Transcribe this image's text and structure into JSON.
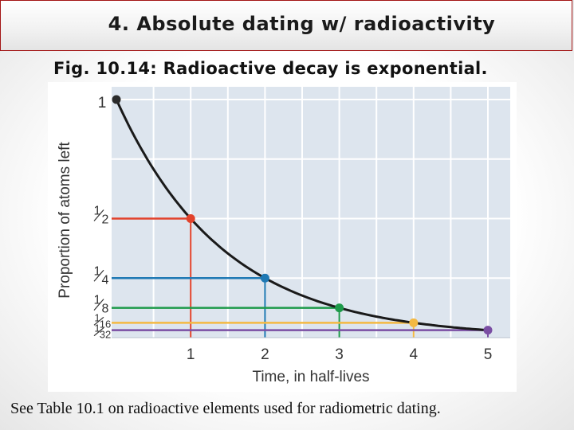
{
  "slide": {
    "title": "4. Absolute dating w/ radioactivity",
    "caption": "Fig. 10.14: Radioactive decay is exponential.",
    "footer": "See Table 10.1 on radioactive elements used for radiometric dating."
  },
  "chart_data": {
    "type": "line",
    "title": "",
    "xlabel": "Time, in half-lives",
    "ylabel": "Proportion of atoms left",
    "xlim": [
      0,
      5.3
    ],
    "ylim": [
      0,
      1.05
    ],
    "grid": true,
    "x_ticks": [
      {
        "value": 1,
        "label": "1"
      },
      {
        "value": 2,
        "label": "2"
      },
      {
        "value": 3,
        "label": "3"
      },
      {
        "value": 4,
        "label": "4"
      },
      {
        "value": 5,
        "label": "5"
      }
    ],
    "y_ticks": [
      {
        "value": 1,
        "num": "1",
        "den": ""
      },
      {
        "value": 0.5,
        "num": "1",
        "den": "2"
      },
      {
        "value": 0.25,
        "num": "1",
        "den": "4"
      },
      {
        "value": 0.125,
        "num": "1",
        "den": "8"
      },
      {
        "value": 0.0625,
        "num": "1",
        "den": "16"
      },
      {
        "value": 0.03125,
        "num": "1",
        "den": "32"
      }
    ],
    "series": [
      {
        "x": [
          0,
          0.5,
          1,
          1.5,
          2,
          2.5,
          3,
          3.5,
          4,
          4.5,
          5
        ],
        "y": [
          1,
          0.7071,
          0.5,
          0.3536,
          0.25,
          0.1768,
          0.125,
          0.0884,
          0.0625,
          0.0442,
          0.03125
        ],
        "color": "#1a1a1a"
      }
    ],
    "points": [
      {
        "x": 0,
        "y": 1,
        "color": "#2b2b2b"
      },
      {
        "x": 1,
        "y": 0.5,
        "color": "#e2422b"
      },
      {
        "x": 2,
        "y": 0.25,
        "color": "#1f79b4"
      },
      {
        "x": 3,
        "y": 0.125,
        "color": "#1d9a4a"
      },
      {
        "x": 4,
        "y": 0.0625,
        "color": "#f4b942"
      },
      {
        "x": 5,
        "y": 0.03125,
        "color": "#7a4ea3"
      }
    ]
  }
}
